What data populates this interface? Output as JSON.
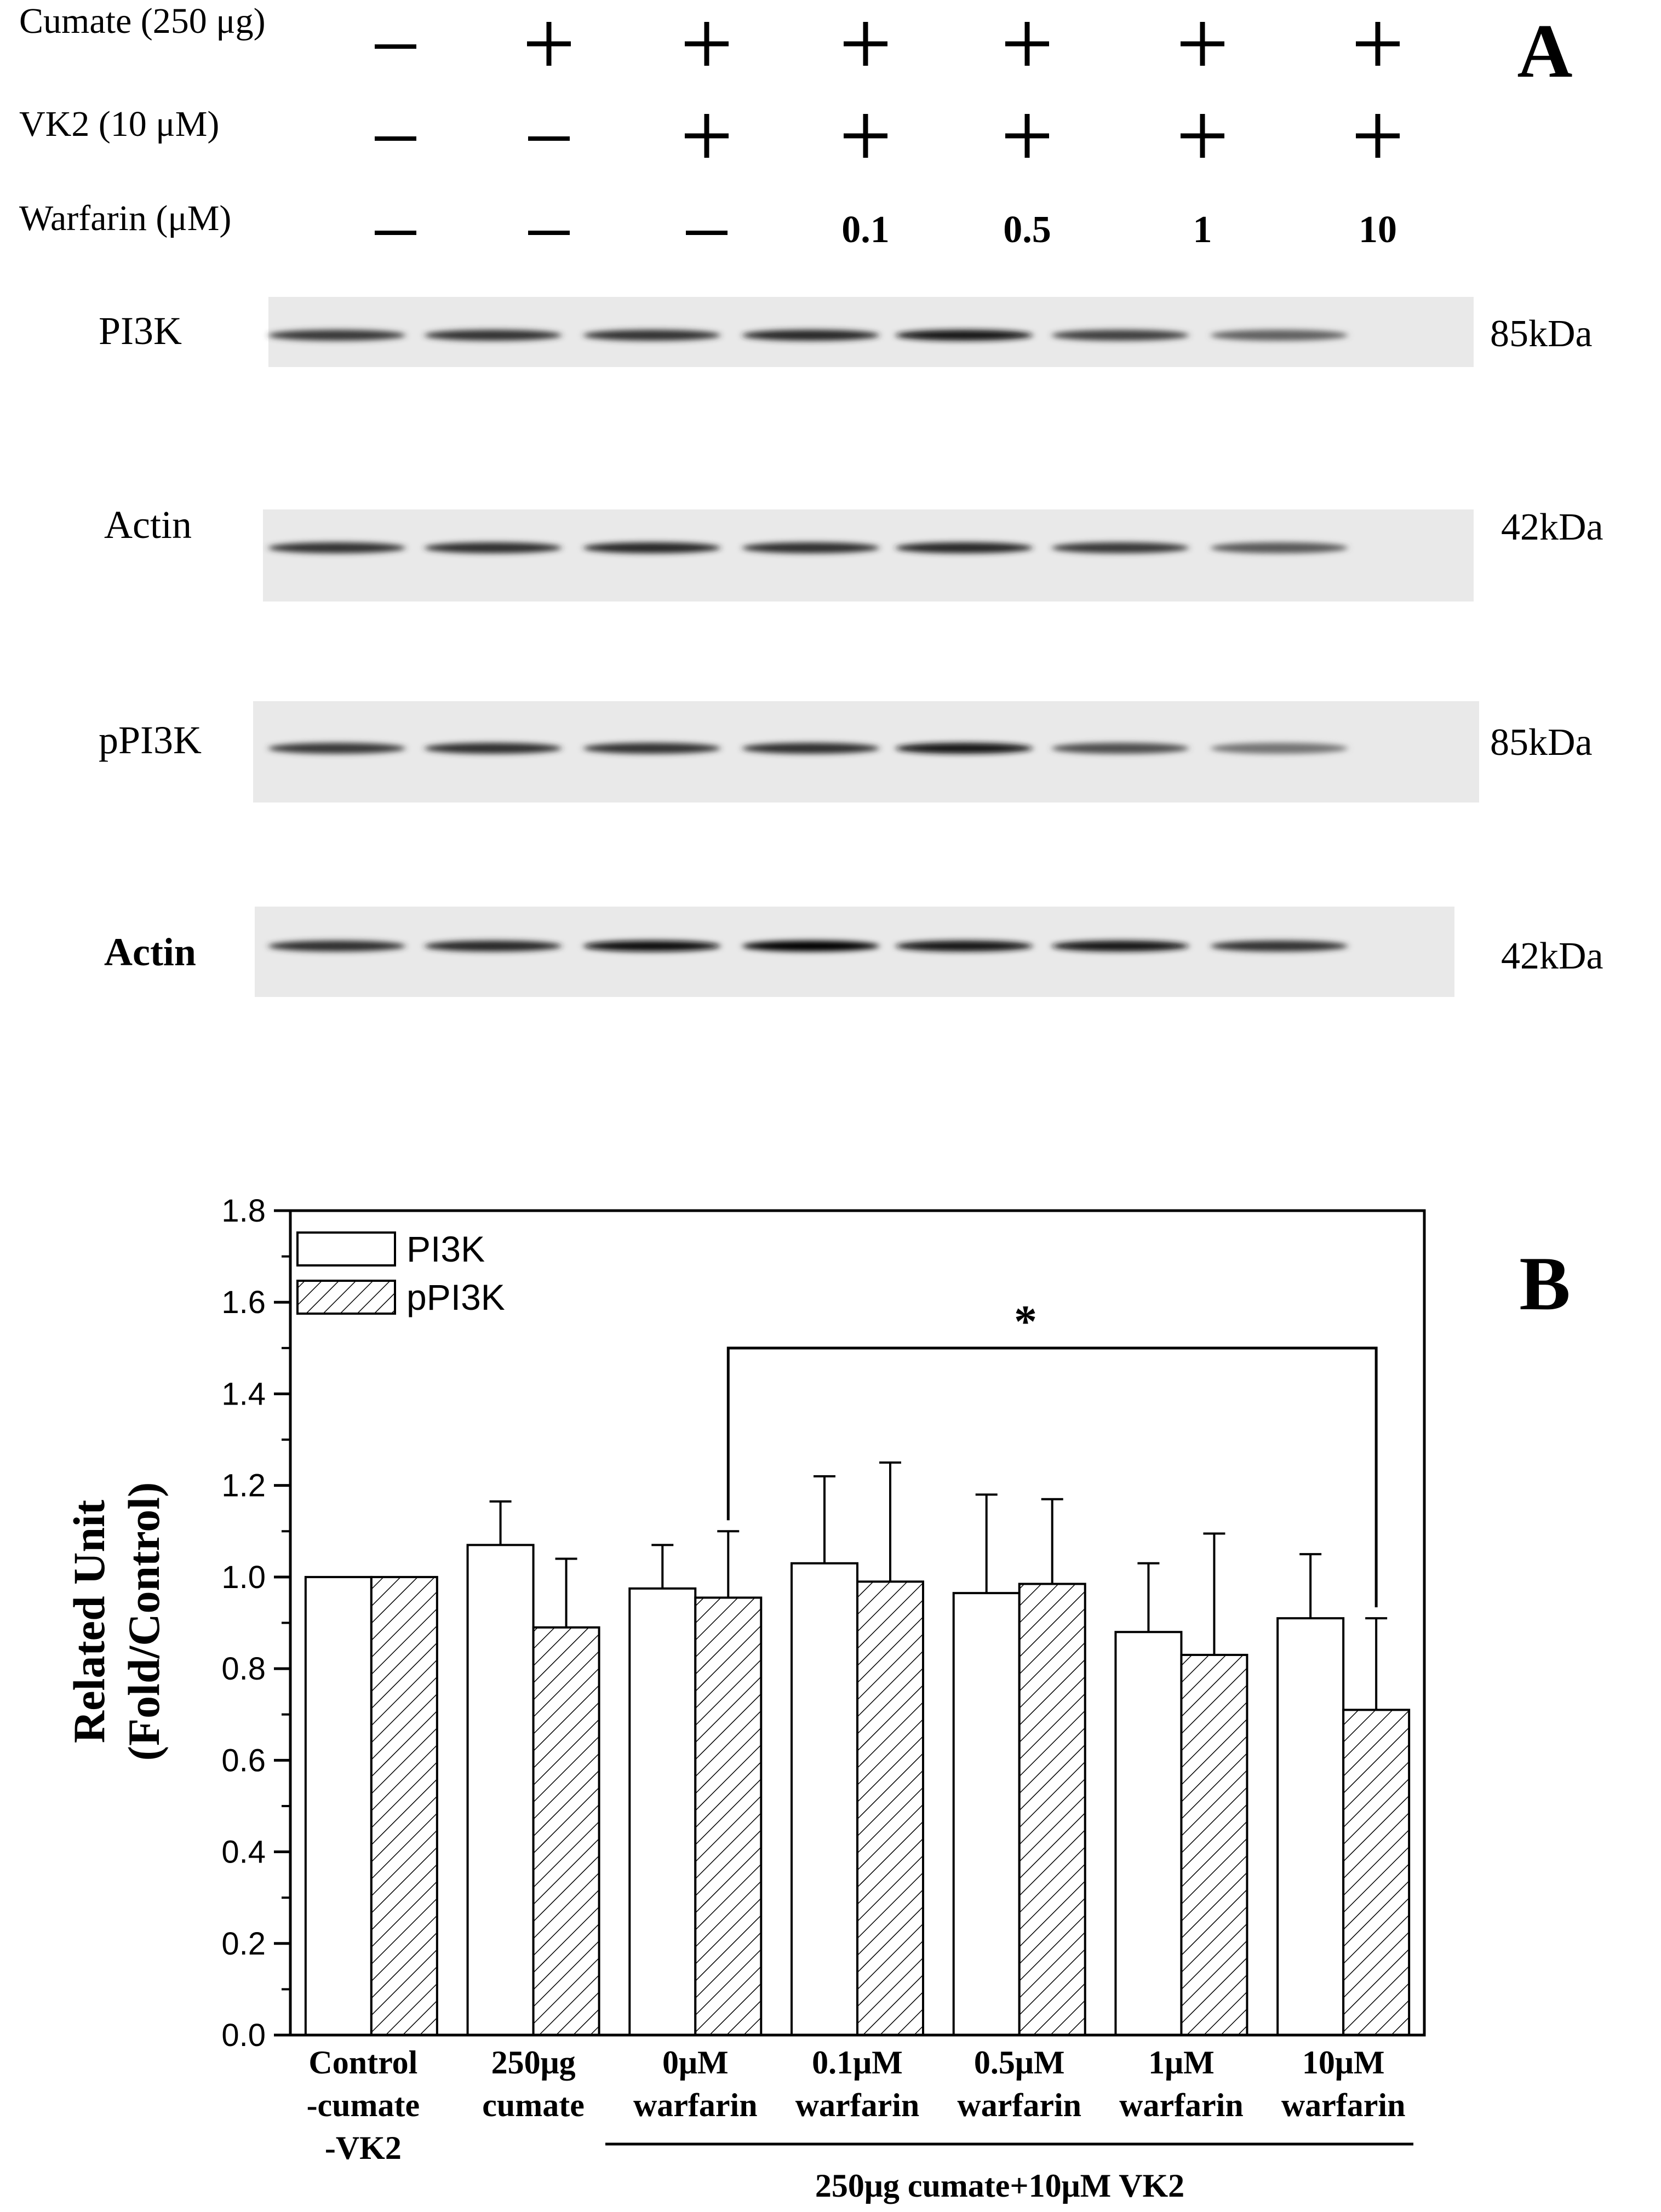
{
  "panel_a": {
    "panel_label": "A",
    "treatment_rows": [
      {
        "label": "Cumate (250 μg)",
        "values": [
          "—",
          "+",
          "+",
          "+",
          "+",
          "+",
          "+"
        ]
      },
      {
        "label": "VK2 (10 μM)",
        "values": [
          "—",
          "—",
          "+",
          "+",
          "+",
          "+",
          "+"
        ]
      },
      {
        "label": "Warfarin (μM)",
        "values": [
          "—",
          "—",
          "—",
          "0.1",
          "0.5",
          "1",
          "10"
        ]
      }
    ],
    "blots": [
      {
        "label": "PI3K",
        "size": "85kDa",
        "band_intensity": [
          0.78,
          0.8,
          0.8,
          0.85,
          0.92,
          0.75,
          0.62
        ]
      },
      {
        "label": "Actin",
        "size": "42kDa",
        "band_intensity": [
          0.8,
          0.82,
          0.85,
          0.82,
          0.85,
          0.78,
          0.65
        ]
      },
      {
        "label": "pPI3K",
        "size": "85kDa",
        "band_intensity": [
          0.78,
          0.82,
          0.8,
          0.82,
          0.92,
          0.7,
          0.55
        ]
      },
      {
        "label": "Actin",
        "size": "42kDa",
        "band_intensity": [
          0.82,
          0.85,
          0.95,
          0.98,
          0.9,
          0.9,
          0.8
        ]
      }
    ]
  },
  "panel_b": {
    "panel_label": "B",
    "significance": "*",
    "bracket_bottom_note": "250μg cumate+10μM VK2"
  },
  "chart_data": {
    "type": "bar",
    "ylabel_line1": "Related Unit",
    "ylabel_line2": "(Fold/Control)",
    "ylim": [
      0,
      1.8
    ],
    "yticks": [
      "0.0",
      "0.2",
      "0.4",
      "0.6",
      "0.8",
      "1.0",
      "1.2",
      "1.4",
      "1.6",
      "1.8"
    ],
    "legend_position": "top-left",
    "categories": [
      [
        "Control",
        "-cumate",
        "-VK2"
      ],
      [
        "250μg",
        "cumate"
      ],
      [
        "0μM",
        "warfarin"
      ],
      [
        "0.1μM",
        "warfarin"
      ],
      [
        "0.5μM",
        "warfarin"
      ],
      [
        "1μM",
        "warfarin"
      ],
      [
        "10μM",
        "warfarin"
      ]
    ],
    "series": [
      {
        "name": "PI3K",
        "pattern": "open",
        "values": [
          1.0,
          1.07,
          0.975,
          1.03,
          0.965,
          0.88,
          0.91
        ],
        "errors": [
          0,
          0.095,
          0.095,
          0.19,
          0.215,
          0.15,
          0.14
        ]
      },
      {
        "name": "pPI3K",
        "pattern": "hatched",
        "values": [
          1.0,
          0.89,
          0.955,
          0.99,
          0.985,
          0.83,
          0.71
        ],
        "errors": [
          0,
          0.15,
          0.145,
          0.26,
          0.185,
          0.265,
          0.2
        ]
      }
    ]
  }
}
